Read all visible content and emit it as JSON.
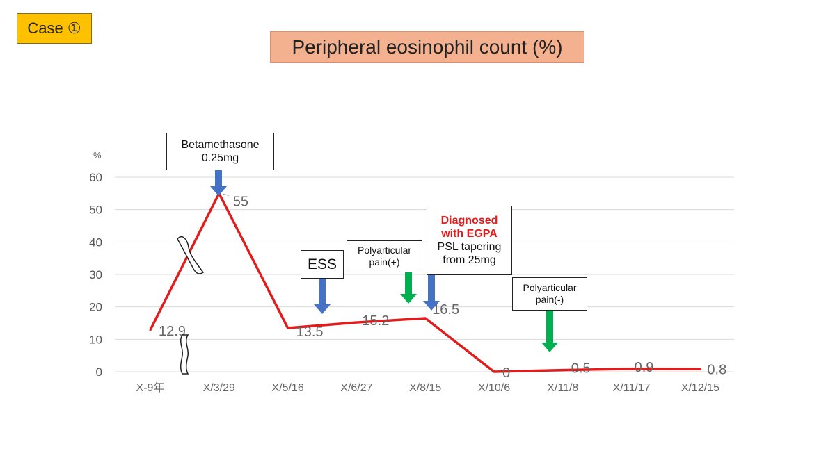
{
  "badge": "Case ①",
  "title": "Peripheral eosinophil count (%)",
  "annotations": {
    "betamethasone": [
      "Betamethasone",
      "0.25mg"
    ],
    "ess": "ESS",
    "pain_plus": [
      "Polyarticular",
      "pain(+)"
    ],
    "egpa_red": [
      "Diagnosed",
      "with EGPA"
    ],
    "egpa_rest": [
      "PSL tapering",
      "from 25mg"
    ],
    "pain_minus": [
      "Polyarticular",
      "pain(-)"
    ]
  },
  "colors": {
    "line": "#e31b1b",
    "blue_arrow": "#4472c4",
    "green_arrow": "#00b050"
  },
  "chart_data": {
    "type": "line",
    "categories": [
      "X-9年",
      "X/3/29",
      "X/5/16",
      "X/6/27",
      "X/8/15",
      "X/10/6",
      "X/11/8",
      "X/11/17",
      "X/12/15"
    ],
    "values": [
      12.9,
      55,
      13.5,
      15.2,
      16.5,
      0,
      0.5,
      0.9,
      0.8
    ],
    "data_labels": [
      "12.9",
      "55",
      "13.5",
      "15.2",
      "16.5",
      "0",
      "0.5",
      "0.9",
      "0.8"
    ],
    "ylabel": "%",
    "yticks": [
      0,
      10,
      20,
      30,
      40,
      50,
      60
    ],
    "ylim": [
      0,
      60
    ],
    "grid": true,
    "axis_break": true
  }
}
